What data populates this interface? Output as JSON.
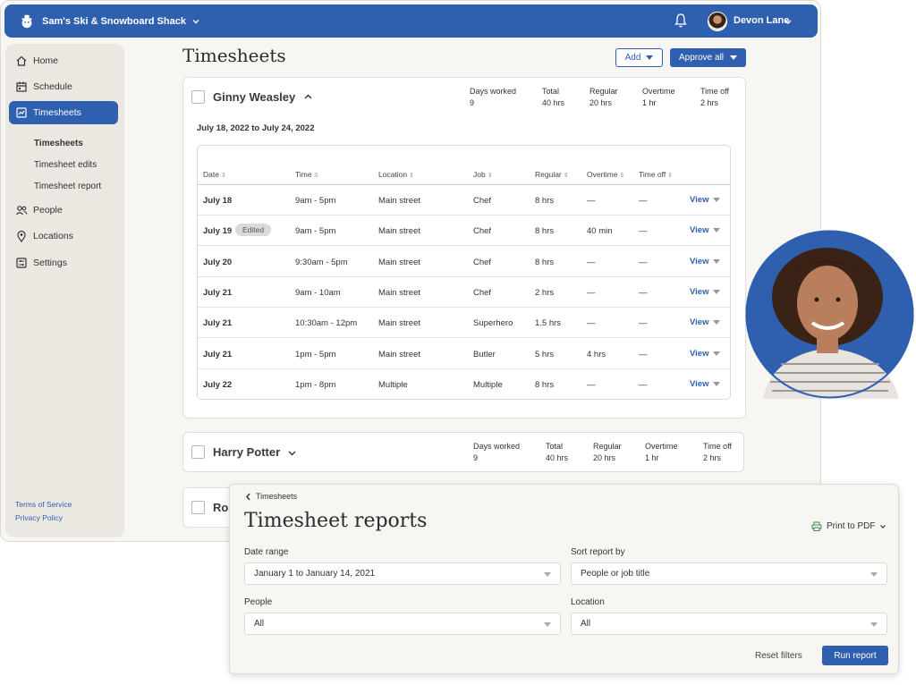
{
  "colors": {
    "brand": "#2f5faf",
    "sidebar_bg": "#ebe8e2",
    "page_bg": "#f7f6f3"
  },
  "topbar": {
    "business_name": "Sam's Ski & Snowboard Shack",
    "user_name": "Devon Lane"
  },
  "sidebar": {
    "items": [
      {
        "label": "Home",
        "icon": "home-icon"
      },
      {
        "label": "Schedule",
        "icon": "calendar-icon"
      },
      {
        "label": "Timesheets",
        "icon": "timesheet-icon",
        "active": true
      },
      {
        "label": "People",
        "icon": "people-icon"
      },
      {
        "label": "Locations",
        "icon": "location-pin-icon"
      },
      {
        "label": "Settings",
        "icon": "settings-icon"
      }
    ],
    "subitems": [
      "Timesheets",
      "Timesheet edits",
      "Timesheet report"
    ],
    "footer": [
      "Terms of Service",
      "Privacy Policy"
    ]
  },
  "main": {
    "title": "Timesheets",
    "add_label": "Add",
    "approve_label": "Approve all"
  },
  "employees": [
    {
      "name": "Ginny Weasley",
      "stats": [
        {
          "label": "Days worked",
          "value": "9"
        },
        {
          "label": "Total",
          "value": "40 hrs"
        },
        {
          "label": "Regular",
          "value": "20 hrs"
        },
        {
          "label": "Overtime",
          "value": "1 hr"
        },
        {
          "label": "Time off",
          "value": "2 hrs"
        }
      ],
      "date_range": "July 18, 2022 to July 24, 2022"
    },
    {
      "name": "Harry Potter",
      "stats": [
        {
          "label": "Days worked",
          "value": "9"
        },
        {
          "label": "Total",
          "value": "40 hrs"
        },
        {
          "label": "Regular",
          "value": "20 hrs"
        },
        {
          "label": "Overtime",
          "value": "1 hr"
        },
        {
          "label": "Time off",
          "value": "2 hrs"
        }
      ]
    },
    {
      "name": "Ron"
    }
  ],
  "table": {
    "headers": [
      "Date",
      "Time",
      "Location",
      "Job",
      "Regular",
      "Overtime",
      "Time off"
    ],
    "sort_glyph": "⇕",
    "view_label": "View",
    "edited_label": "Edited",
    "rows": [
      [
        "July 18",
        "9am - 5pm",
        "Main street",
        "Chef",
        "8 hrs",
        "—",
        "—"
      ],
      [
        "July 19",
        "9am - 5pm",
        "Main street",
        "Chef",
        "8 hrs",
        "40 min",
        "—"
      ],
      [
        "July 20",
        "9:30am - 5pm",
        "Main street",
        "Chef",
        "8 hrs",
        "—",
        "—"
      ],
      [
        "July 21",
        "9am - 10am",
        "Main street",
        "Chef",
        "2 hrs",
        "—",
        "—"
      ],
      [
        "July 21",
        "10:30am - 12pm",
        "Main street",
        "Superhero",
        "1.5 hrs",
        "—",
        "—"
      ],
      [
        "July 21",
        "1pm - 5pm",
        "Main street",
        "Butler",
        "5 hrs",
        "4 hrs",
        "—"
      ],
      [
        "July 22",
        "1pm - 8pm",
        "Multiple",
        "Multiple",
        "8 hrs",
        "—",
        "—"
      ]
    ]
  },
  "reports": {
    "back_label": "Timesheets",
    "title": "Timesheet reports",
    "print_label": "Print to PDF",
    "date_range_label": "Date range",
    "date_range_value": "January 1 to January 14, 2021",
    "sort_label": "Sort report by",
    "sort_value": "People or job title",
    "people_label": "People",
    "people_value": "All",
    "location_label": "Location",
    "location_value": "All",
    "reset_label": "Reset filters",
    "run_label": "Run report"
  }
}
